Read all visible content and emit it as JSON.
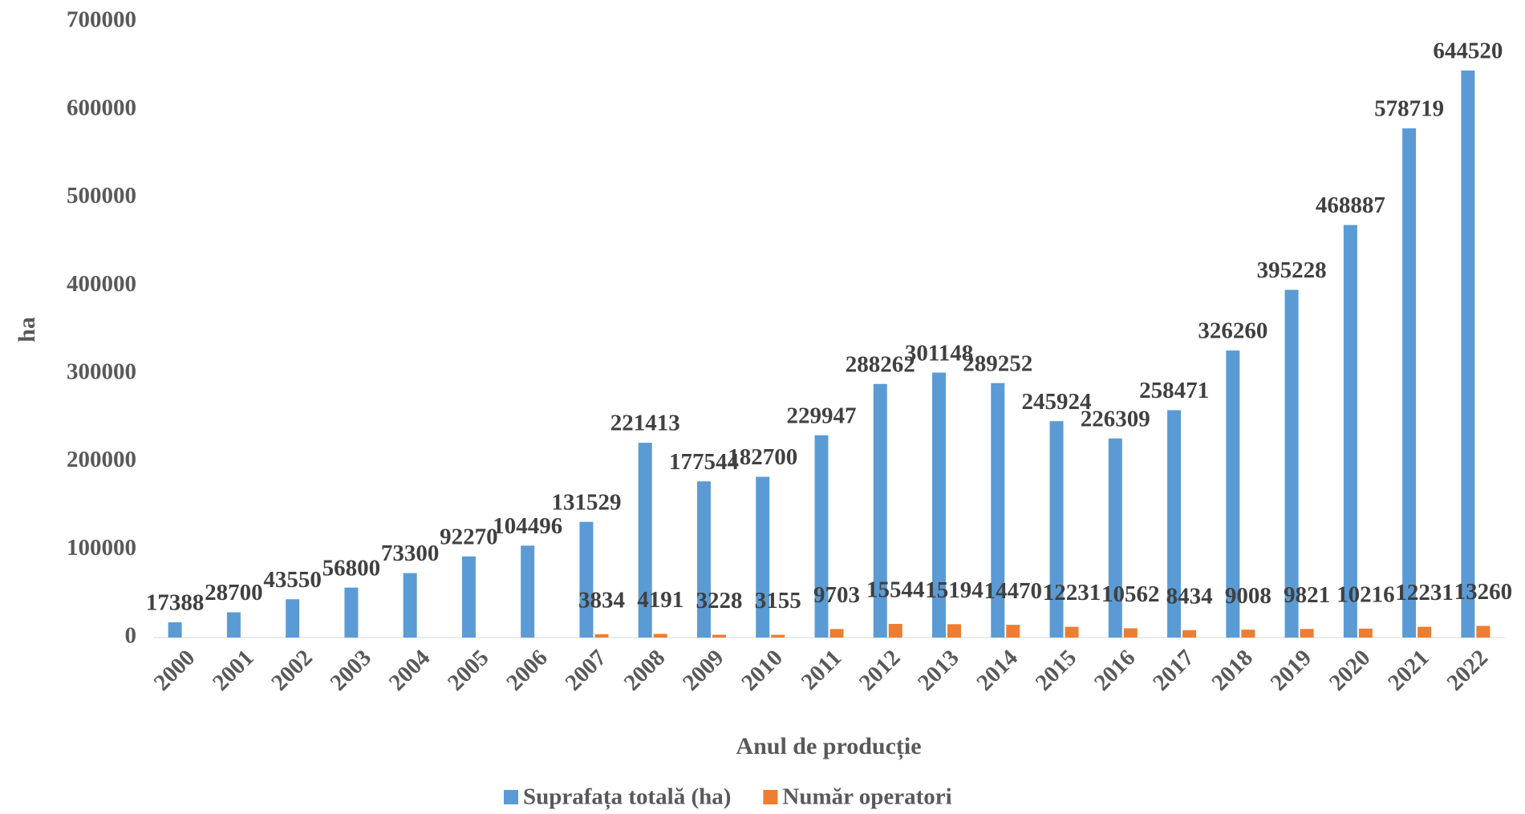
{
  "chart_data": {
    "type": "bar",
    "x_label": "Anul de producție",
    "y_label": "ha",
    "categories": [
      "2000",
      "2001",
      "2002",
      "2003",
      "2004",
      "2005",
      "2006",
      "2007",
      "2008",
      "2009",
      "2010",
      "2011",
      "2012",
      "2013",
      "2014",
      "2015",
      "2016",
      "2017",
      "2018",
      "2019",
      "2020",
      "2021",
      "2022"
    ],
    "series": [
      {
        "name": "Suprafața totală (ha)",
        "color": "#5b9bd5",
        "values": [
          17388,
          28700,
          43550,
          56800,
          73300,
          92270,
          104496,
          131529,
          221413,
          177544,
          182700,
          229947,
          288262,
          301148,
          289252,
          245924,
          226309,
          258471,
          326260,
          395228,
          468887,
          578719,
          644520
        ]
      },
      {
        "name": "Număr operatori",
        "color": "#ed7d31",
        "values": [
          null,
          null,
          null,
          null,
          null,
          null,
          null,
          3834,
          4191,
          3228,
          3155,
          9703,
          15544,
          15194,
          14470,
          12231,
          10562,
          8434,
          9008,
          9821,
          10216,
          12231,
          13260
        ]
      }
    ],
    "ylim": [
      0,
      700000
    ],
    "yticks": [
      0,
      100000,
      200000,
      300000,
      400000,
      500000,
      600000,
      700000
    ],
    "grid": false,
    "legend": "bottom"
  }
}
